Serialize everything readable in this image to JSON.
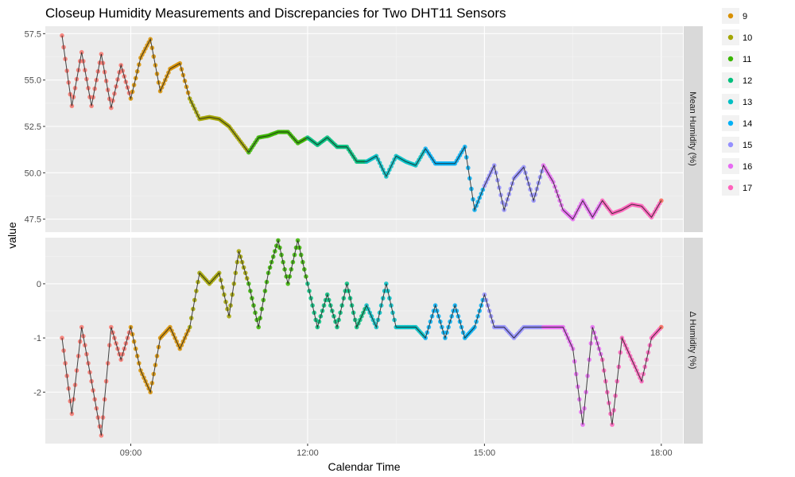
{
  "chart_data": {
    "type": "line",
    "title": "Closeup Humidity Measurements and Discrepancies for Two DHT11 Sensors",
    "xlabel": "Calendar Time",
    "ylabel": "value",
    "x_ticks": [
      "09:00",
      "12:00",
      "15:00",
      "18:00"
    ],
    "grid": true,
    "legend_position": "right",
    "legend": {
      "entries": [
        {
          "label": "9",
          "color": "#D89000"
        },
        {
          "label": "10",
          "color": "#A3A500"
        },
        {
          "label": "11",
          "color": "#39B600"
        },
        {
          "label": "12",
          "color": "#00BF7D"
        },
        {
          "label": "13",
          "color": "#00BFC4"
        },
        {
          "label": "14",
          "color": "#00B0F6"
        },
        {
          "label": "15",
          "color": "#9590FF"
        },
        {
          "label": "16",
          "color": "#E76BF3"
        },
        {
          "label": "17",
          "color": "#FF62BC"
        }
      ]
    },
    "hour_colors": {
      "8": "#F8766D",
      "9": "#D89000",
      "10": "#A3A500",
      "11": "#39B600",
      "12": "#00BF7D",
      "13": "#00BFC4",
      "14": "#00B0F6",
      "15": "#9590FF",
      "16": "#E76BF3",
      "17": "#FF62BC"
    },
    "panels": [
      {
        "strip": "Mean Humidity (%)",
        "ylim": [
          46.8,
          57.9
        ],
        "y_ticks": [
          {
            "value": 47.5,
            "label": "47.5"
          },
          {
            "value": 50.0,
            "label": "50.0"
          },
          {
            "value": 52.5,
            "label": "52.5"
          },
          {
            "value": 55.0,
            "label": "55.0"
          },
          {
            "value": 57.5,
            "label": "57.5"
          }
        ],
        "series": [
          {
            "name": "Mean Humidity (%)",
            "x": [
              "07:50",
              "08:00",
              "08:10",
              "08:20",
              "08:30",
              "08:40",
              "08:50",
              "09:00",
              "09:10",
              "09:20",
              "09:30",
              "09:40",
              "09:50",
              "10:00",
              "10:10",
              "10:20",
              "10:30",
              "10:40",
              "10:50",
              "11:00",
              "11:10",
              "11:20",
              "11:30",
              "11:40",
              "11:50",
              "12:00",
              "12:10",
              "12:20",
              "12:30",
              "12:40",
              "12:50",
              "13:00",
              "13:10",
              "13:20",
              "13:30",
              "13:40",
              "13:50",
              "14:00",
              "14:10",
              "14:20",
              "14:30",
              "14:40",
              "14:50",
              "15:00",
              "15:10",
              "15:20",
              "15:30",
              "15:40",
              "15:50",
              "16:00",
              "16:10",
              "16:20",
              "16:30",
              "16:40",
              "16:50",
              "17:00",
              "17:10",
              "17:20",
              "17:30",
              "17:40",
              "17:50",
              "18:00"
            ],
            "values": [
              57.4,
              53.6,
              56.5,
              53.6,
              56.4,
              53.5,
              55.8,
              54.0,
              56.2,
              57.2,
              54.4,
              55.6,
              55.9,
              54.0,
              52.9,
              53.0,
              52.9,
              52.5,
              51.8,
              51.1,
              51.9,
              52.0,
              52.2,
              52.2,
              51.6,
              51.9,
              51.5,
              51.9,
              51.4,
              51.4,
              50.6,
              50.6,
              50.9,
              49.8,
              50.9,
              50.6,
              50.4,
              51.3,
              50.5,
              50.5,
              50.5,
              51.4,
              48.0,
              49.3,
              50.4,
              48.0,
              49.7,
              50.3,
              48.5,
              50.4,
              49.5,
              48.0,
              47.5,
              48.5,
              47.6,
              48.5,
              47.8,
              48.0,
              48.3,
              48.2,
              47.6,
              48.5
            ]
          }
        ]
      },
      {
        "strip": "Δ Humidity (%)",
        "ylim": [
          -2.95,
          0.85
        ],
        "y_ticks": [
          {
            "value": -2,
            "label": "-2"
          },
          {
            "value": -1,
            "label": "-1"
          },
          {
            "value": 0,
            "label": "0"
          }
        ],
        "series": [
          {
            "name": "Δ Humidity (%)",
            "x": [
              "07:50",
              "08:00",
              "08:10",
              "08:20",
              "08:30",
              "08:40",
              "08:50",
              "09:00",
              "09:10",
              "09:20",
              "09:30",
              "09:40",
              "09:50",
              "10:00",
              "10:10",
              "10:20",
              "10:30",
              "10:40",
              "10:50",
              "11:00",
              "11:10",
              "11:20",
              "11:30",
              "11:40",
              "11:50",
              "12:00",
              "12:10",
              "12:20",
              "12:30",
              "12:40",
              "12:50",
              "13:00",
              "13:10",
              "13:20",
              "13:30",
              "13:40",
              "13:50",
              "14:00",
              "14:10",
              "14:20",
              "14:30",
              "14:40",
              "14:50",
              "15:00",
              "15:10",
              "15:20",
              "15:30",
              "15:40",
              "15:50",
              "16:00",
              "16:10",
              "16:20",
              "16:30",
              "16:40",
              "16:50",
              "17:00",
              "17:10",
              "17:20",
              "17:30",
              "17:40",
              "17:50",
              "18:00"
            ],
            "values": [
              -1.0,
              -2.4,
              -0.8,
              -1.8,
              -2.8,
              -0.8,
              -1.4,
              -0.8,
              -1.6,
              -2.0,
              -1.0,
              -0.8,
              -1.2,
              -0.8,
              0.2,
              0.0,
              0.2,
              -0.6,
              0.6,
              0.0,
              -0.8,
              0.2,
              0.8,
              0.0,
              0.8,
              0.0,
              -0.8,
              -0.2,
              -0.8,
              0.0,
              -0.8,
              -0.4,
              -0.8,
              0.0,
              -0.8,
              -0.8,
              -0.8,
              -1.0,
              -0.4,
              -1.0,
              -0.4,
              -1.0,
              -0.8,
              -0.2,
              -0.8,
              -0.8,
              -1.0,
              -0.8,
              -0.8,
              -0.8,
              -0.8,
              -0.8,
              -1.2,
              -2.6,
              -0.8,
              -1.4,
              -2.6,
              -1.0,
              -1.4,
              -1.8,
              -1.0,
              -0.8
            ]
          }
        ]
      }
    ]
  }
}
